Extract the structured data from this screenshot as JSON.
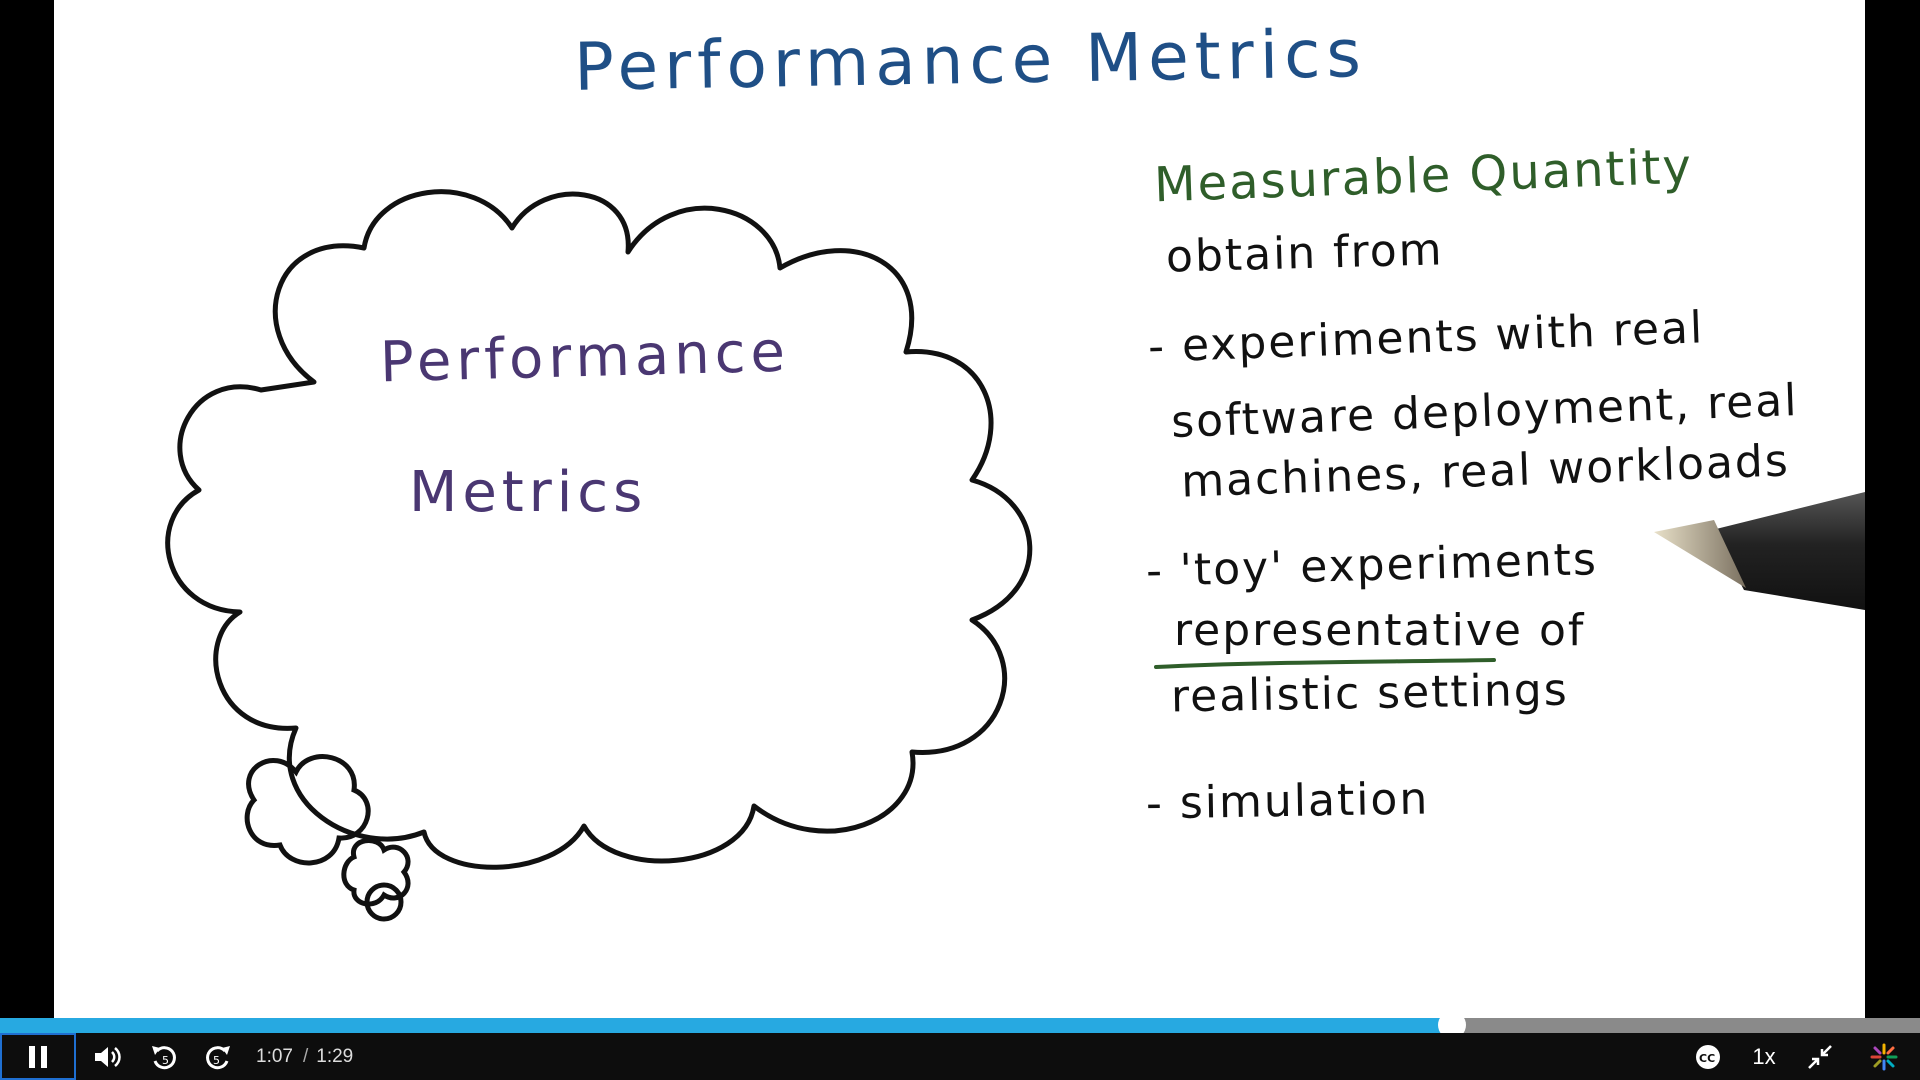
{
  "video": {
    "slide": {
      "title": "Performance Metrics",
      "thought_cloud": {
        "line1": "Performance",
        "line2": "Metrics"
      },
      "heading": "Measurable Quantity",
      "notes": [
        "obtain from",
        "- experiments with real",
        "software deployment, real",
        "machines, real workloads",
        "- 'toy' experiments",
        "representative of",
        "realistic settings",
        "- simulation"
      ]
    },
    "colors": {
      "title": "#1f4f86",
      "cloud_text": "#4a3772",
      "heading": "#2f5e2a",
      "underline": "#2f5e2a",
      "progress": "#27a9e1"
    }
  },
  "player": {
    "progress_fraction": 0.756,
    "current_time": "1:07",
    "duration": "1:29",
    "speed": "1x",
    "icons": {
      "play_pause": "pause-icon",
      "volume": "volume-icon",
      "rewind": "rewind-5-icon",
      "forward": "forward-5-icon",
      "captions": "closed-captions-icon",
      "fullscreen": "exit-fullscreen-icon",
      "logo": "brand-logo-icon"
    }
  }
}
